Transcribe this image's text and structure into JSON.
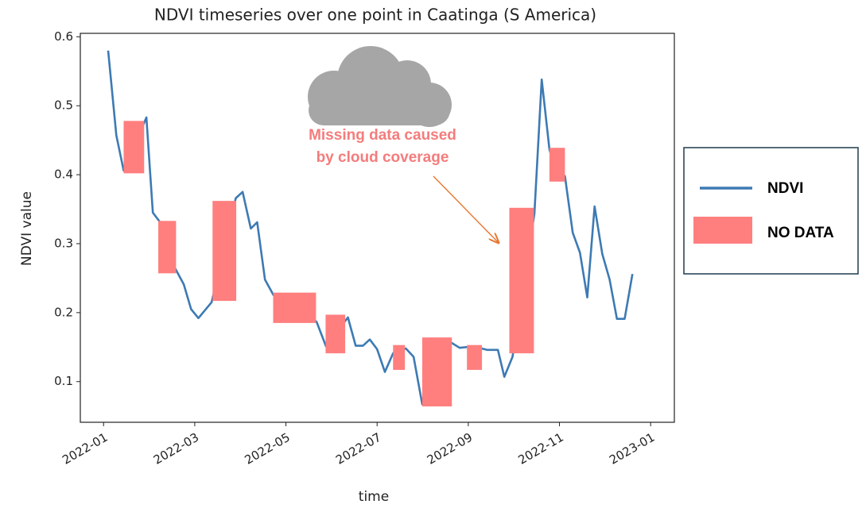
{
  "chart_data": {
    "type": "line",
    "title": "NDVI timeseries over one point in Caatinga (S America)",
    "x_label": "time",
    "y_label": "NDVI value",
    "xlim": [
      -0.51,
      12.52
    ],
    "xticks": [
      {
        "value": 0,
        "label": "2022-01"
      },
      {
        "value": 2,
        "label": "2022-03"
      },
      {
        "value": 4,
        "label": "2022-05"
      },
      {
        "value": 6,
        "label": "2022-07"
      },
      {
        "value": 8,
        "label": "2022-09"
      },
      {
        "value": 10,
        "label": "2022-11"
      },
      {
        "value": 12,
        "label": "2023-01"
      }
    ],
    "ylim": [
      0.041,
      0.605
    ],
    "yticks": [
      0.1,
      0.2,
      0.3,
      0.4,
      0.5,
      0.6
    ],
    "series": [
      {
        "name": "NDVI",
        "color": "#3d7ab3",
        "x": [
          0.1,
          0.28,
          0.44,
          0.94,
          1.08,
          1.24,
          1.54,
          1.76,
          1.92,
          2.08,
          2.37,
          2.9,
          3.05,
          3.23,
          3.37,
          3.54,
          3.73,
          4.67,
          4.88,
          5.36,
          5.53,
          5.69,
          5.84,
          6.0,
          6.17,
          6.35,
          6.63,
          6.8,
          6.99,
          7.33,
          7.64,
          7.81,
          8.11,
          8.41,
          8.65,
          8.79,
          8.97,
          9.45,
          9.61,
          9.78,
          9.96,
          10.12,
          10.29,
          10.45,
          10.61,
          10.77,
          10.94,
          11.1,
          11.26,
          11.43,
          11.6
        ],
        "values": [
          0.58,
          0.457,
          0.406,
          0.483,
          0.345,
          0.331,
          0.268,
          0.241,
          0.205,
          0.192,
          0.215,
          0.366,
          0.375,
          0.322,
          0.331,
          0.248,
          0.225,
          0.187,
          0.151,
          0.193,
          0.152,
          0.152,
          0.161,
          0.147,
          0.114,
          0.141,
          0.148,
          0.136,
          0.067,
          0.156,
          0.156,
          0.149,
          0.151,
          0.146,
          0.146,
          0.107,
          0.136,
          0.343,
          0.538,
          0.437,
          0.394,
          0.398,
          0.316,
          0.287,
          0.222,
          0.354,
          0.285,
          0.248,
          0.191,
          0.191,
          0.256
        ]
      }
    ],
    "no_data": {
      "name": "NO DATA",
      "color": "#ff7f7f",
      "x0": [
        0.44,
        1.2,
        2.39,
        3.72,
        4.87,
        6.35,
        6.99,
        7.97,
        8.9,
        9.78
      ],
      "x1": [
        0.89,
        1.59,
        2.91,
        4.66,
        5.3,
        6.61,
        7.64,
        8.3,
        9.44,
        10.12
      ],
      "y0": [
        0.402,
        0.257,
        0.217,
        0.185,
        0.141,
        0.117,
        0.064,
        0.117,
        0.141,
        0.39
      ],
      "y1": [
        0.478,
        0.333,
        0.362,
        0.229,
        0.197,
        0.153,
        0.164,
        0.153,
        0.352,
        0.439
      ]
    },
    "annotation": [
      "Missing data caused",
      "by cloud coverage"
    ]
  }
}
